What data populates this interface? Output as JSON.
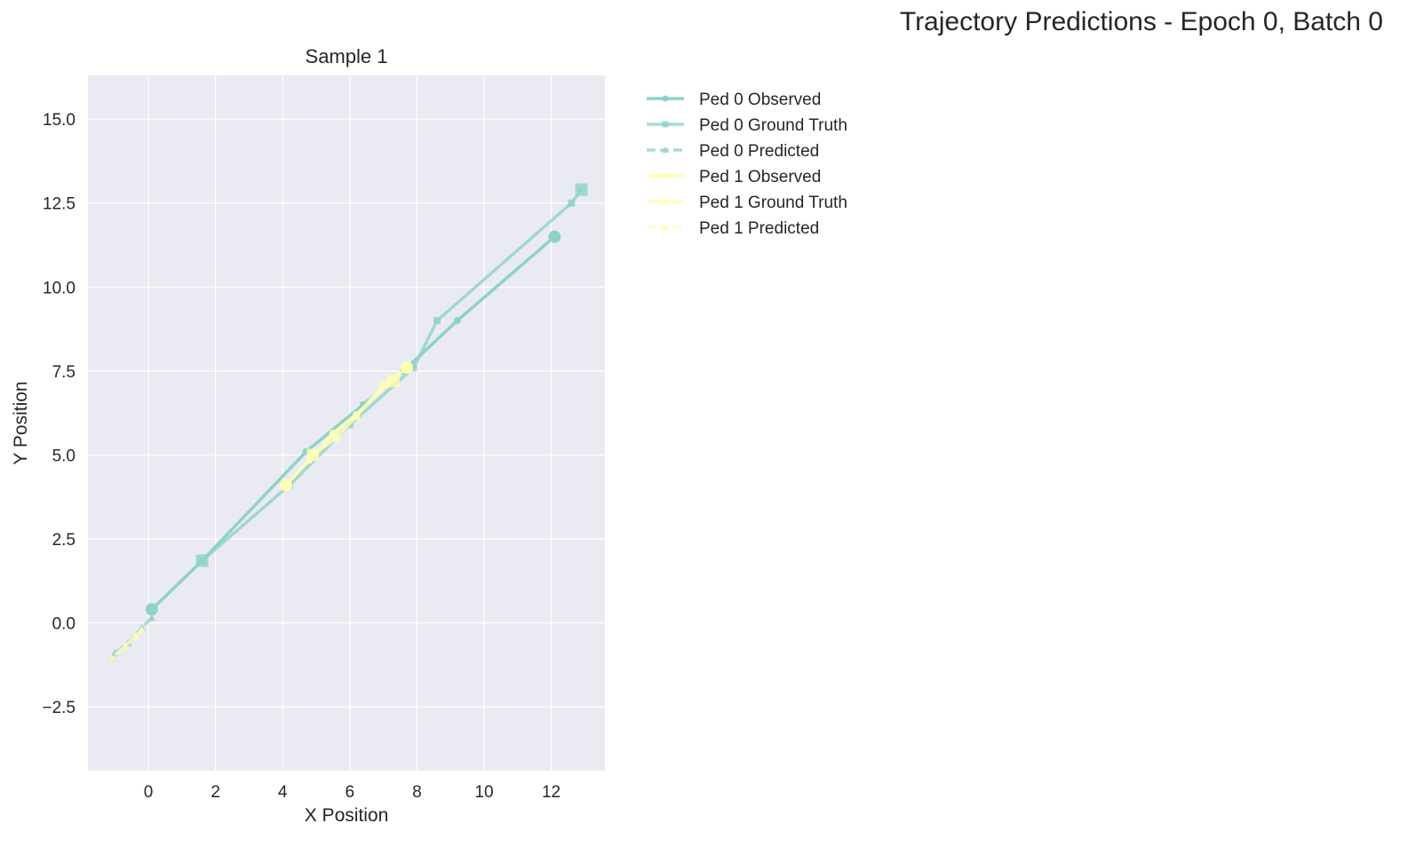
{
  "figure_title": "Trajectory Predictions - Epoch 0, Batch 0",
  "chart_data": {
    "type": "line",
    "title": "Sample 1",
    "xlabel": "X Position",
    "ylabel": "Y Position",
    "xlim": [
      -1.8,
      13.6
    ],
    "ylim": [
      -4.4,
      16.3
    ],
    "xticks": [
      0,
      2,
      4,
      6,
      8,
      10,
      12
    ],
    "xtick_labels": [
      "0",
      "2",
      "4",
      "6",
      "8",
      "10",
      "12"
    ],
    "yticks": [
      -2.5,
      0.0,
      2.5,
      5.0,
      7.5,
      10.0,
      12.5,
      15.0
    ],
    "ytick_labels": [
      "−2.5",
      "0.0",
      "2.5",
      "5.0",
      "7.5",
      "10.0",
      "12.5",
      "15.0"
    ],
    "grid": true,
    "legend_position": "outside-right",
    "background": "#eaeaf2",
    "series": [
      {
        "name": "Ped 0 Observed",
        "color": "#8dd3c7",
        "style": "solid",
        "marker": "circle",
        "opacity": 1.0,
        "x": [
          0.1,
          1.6,
          4.7,
          6.4,
          7.6,
          9.2,
          12.1
        ],
        "y": [
          0.4,
          1.85,
          5.1,
          6.5,
          7.5,
          9.0,
          11.5
        ]
      },
      {
        "name": "Ped 0 Ground Truth",
        "color": "#8dd3c7",
        "style": "solid",
        "marker": "square",
        "opacity": 0.8,
        "x": [
          1.6,
          4.2,
          6.0,
          7.9,
          8.6,
          12.6,
          12.9
        ],
        "y": [
          1.85,
          4.1,
          5.9,
          7.6,
          9.0,
          12.5,
          12.9
        ]
      },
      {
        "name": "Ped 0 Predicted",
        "color": "#8dd3c7",
        "style": "dashed",
        "marker": "triangle",
        "opacity": 0.75,
        "x": [
          0.1,
          -0.2,
          -0.6,
          -1.0,
          -1.1
        ],
        "y": [
          0.15,
          -0.15,
          -0.6,
          -0.9,
          -1.05
        ]
      },
      {
        "name": "Ped 1 Observed",
        "color": "#ffffb3",
        "style": "solid",
        "marker": "circle",
        "opacity": 1.0,
        "x": [
          4.1,
          4.8,
          5.5,
          6.2,
          7.1,
          7.7
        ],
        "y": [
          4.1,
          4.85,
          5.65,
          6.2,
          7.1,
          7.6
        ]
      },
      {
        "name": "Ped 1 Ground Truth",
        "color": "#ffffb3",
        "style": "solid",
        "marker": "square",
        "opacity": 0.8,
        "x": [
          4.9,
          5.6,
          6.2,
          7.0,
          7.3
        ],
        "y": [
          5.0,
          5.5,
          6.15,
          7.1,
          7.2
        ]
      },
      {
        "name": "Ped 1 Predicted",
        "color": "#ffffb3",
        "style": "dashed",
        "marker": "triangle",
        "opacity": 0.75,
        "x": [
          -0.2,
          -0.4,
          -0.7,
          -1.1
        ],
        "y": [
          -0.2,
          -0.4,
          -0.7,
          -1.05
        ]
      }
    ]
  }
}
